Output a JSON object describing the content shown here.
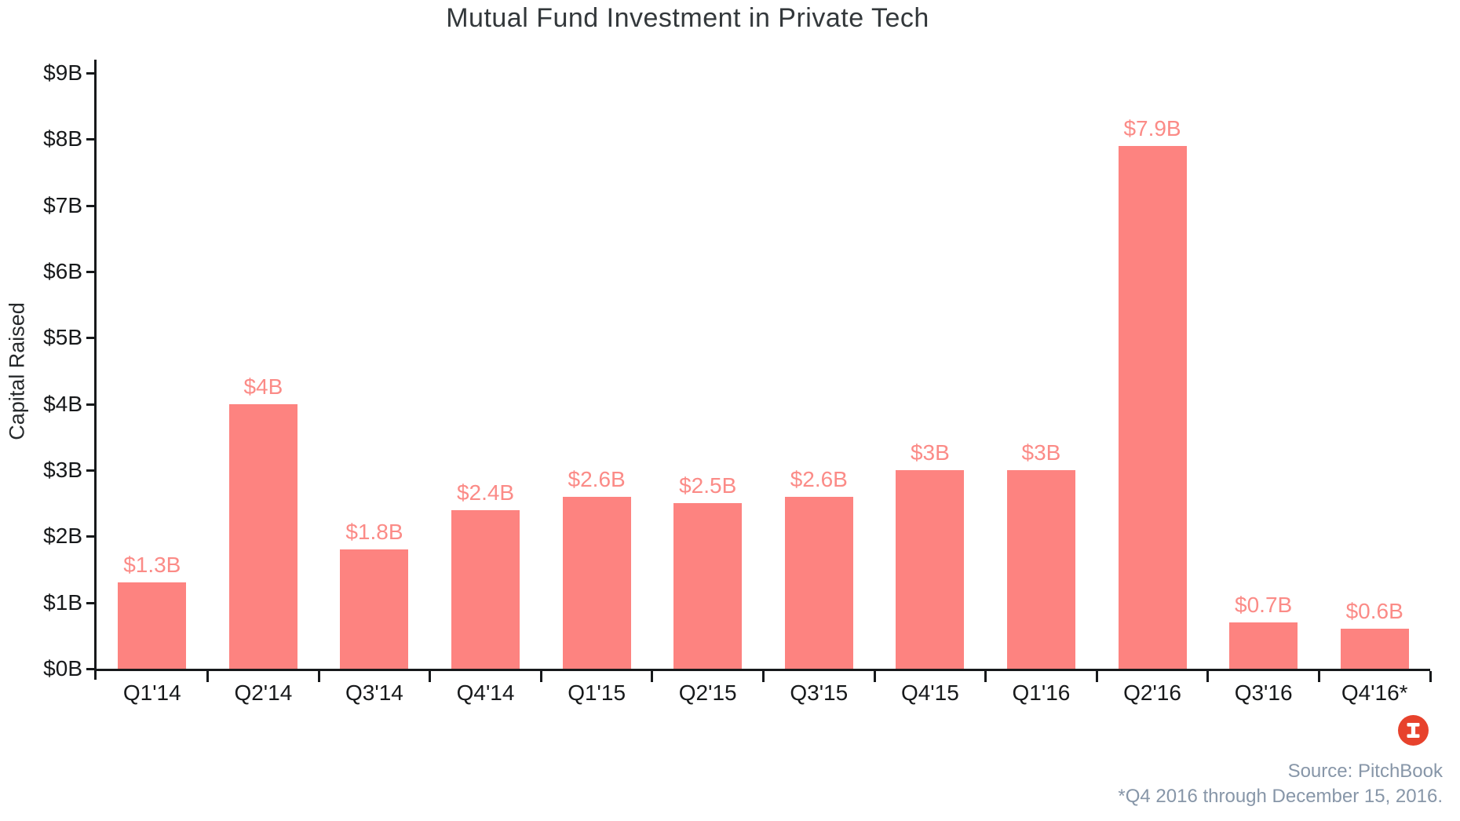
{
  "title": "Mutual Fund Investment in Private Tech",
  "chart_data": {
    "type": "bar",
    "title": "Mutual Fund Investment in Private Tech",
    "categories": [
      "Q1'14",
      "Q2'14",
      "Q3'14",
      "Q4'14",
      "Q1'15",
      "Q2'15",
      "Q3'15",
      "Q4'15",
      "Q1'16",
      "Q2'16",
      "Q3'16",
      "Q4'16*"
    ],
    "values": [
      1.3,
      4,
      1.8,
      2.4,
      2.6,
      2.5,
      2.6,
      3,
      3,
      7.9,
      0.7,
      0.6
    ],
    "labels": [
      "$1.3B",
      "$4B",
      "$1.8B",
      "$2.4B",
      "$2.6B",
      "$2.5B",
      "$2.6B",
      "$3B",
      "$3B",
      "$7.9B",
      "$0.7B",
      "$0.6B"
    ],
    "xlabel": "",
    "ylabel": "Capital Raised",
    "ylim": [
      0,
      9
    ],
    "y_tick_step": 1,
    "y_tick_labels": [
      "$0B",
      "$1B",
      "$2B",
      "$3B",
      "$4B",
      "$5B",
      "$6B",
      "$7B",
      "$8B",
      "$9B"
    ],
    "grid": false,
    "legend": "none",
    "bar_color": "#fd8380",
    "value_label_color": "#fb8b87",
    "axis_color": "#17191b"
  },
  "footer": {
    "source": "Source: PitchBook",
    "footnote": "*Q4 2016 through December 15, 2016.",
    "logo_icon": "recode-i-icon",
    "logo_color": "#e7422c",
    "text_color": "#8796a8"
  }
}
